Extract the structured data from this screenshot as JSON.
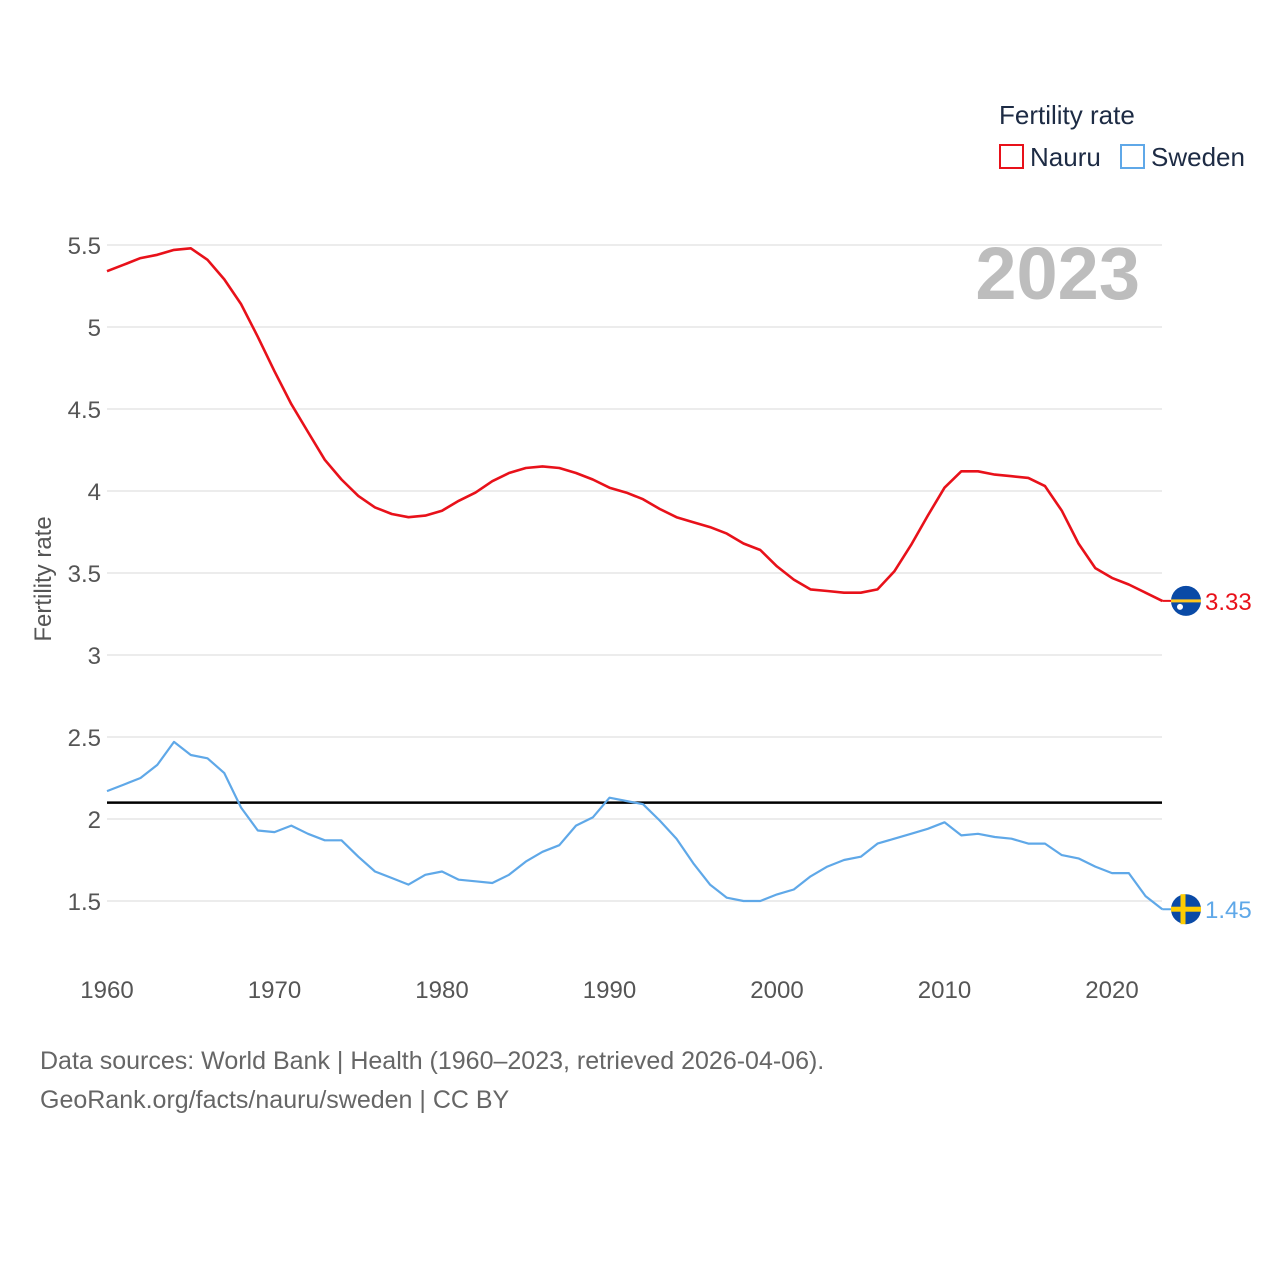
{
  "chart_data": {
    "type": "line",
    "title": "",
    "legend_title": "Fertility rate",
    "year_label": "2023",
    "ylabel": "Fertility rate",
    "xlabel": "",
    "xlim": [
      1960,
      2023
    ],
    "ylim": [
      1.25,
      5.6
    ],
    "x_ticks": [
      "1960",
      "1970",
      "1980",
      "1990",
      "2000",
      "2010",
      "2020"
    ],
    "y_ticks": [
      "1.5",
      "2",
      "2.5",
      "3",
      "3.5",
      "4",
      "4.5",
      "5",
      "5.5"
    ],
    "reference_line": 2.1,
    "years": [
      1960,
      1961,
      1962,
      1963,
      1964,
      1965,
      1966,
      1967,
      1968,
      1969,
      1970,
      1971,
      1972,
      1973,
      1974,
      1975,
      1976,
      1977,
      1978,
      1979,
      1980,
      1981,
      1982,
      1983,
      1984,
      1985,
      1986,
      1987,
      1988,
      1989,
      1990,
      1991,
      1992,
      1993,
      1994,
      1995,
      1996,
      1997,
      1998,
      1999,
      2000,
      2001,
      2002,
      2003,
      2004,
      2005,
      2006,
      2007,
      2008,
      2009,
      2010,
      2011,
      2012,
      2013,
      2014,
      2015,
      2016,
      2017,
      2018,
      2019,
      2020,
      2021,
      2022,
      2023
    ],
    "series": [
      {
        "name": "Nauru",
        "color": "#e8111a",
        "end_label": "3.33",
        "flag": "nauru",
        "values": [
          5.34,
          5.38,
          5.42,
          5.44,
          5.47,
          5.48,
          5.41,
          5.29,
          5.14,
          4.94,
          4.73,
          4.53,
          4.36,
          4.19,
          4.07,
          3.97,
          3.9,
          3.86,
          3.84,
          3.85,
          3.88,
          3.94,
          3.99,
          4.06,
          4.11,
          4.14,
          4.15,
          4.14,
          4.11,
          4.07,
          4.02,
          3.99,
          3.95,
          3.89,
          3.84,
          3.81,
          3.78,
          3.74,
          3.68,
          3.64,
          3.54,
          3.46,
          3.4,
          3.39,
          3.38,
          3.38,
          3.4,
          3.51,
          3.67,
          3.85,
          4.02,
          4.12,
          4.12,
          4.1,
          4.09,
          4.08,
          4.03,
          3.88,
          3.68,
          3.53,
          3.47,
          3.43,
          3.38,
          3.33
        ]
      },
      {
        "name": "Sweden",
        "color": "#5fa8e8",
        "end_label": "1.45",
        "flag": "sweden",
        "values": [
          2.17,
          2.21,
          2.25,
          2.33,
          2.47,
          2.39,
          2.37,
          2.28,
          2.07,
          1.93,
          1.92,
          1.96,
          1.91,
          1.87,
          1.87,
          1.77,
          1.68,
          1.64,
          1.6,
          1.66,
          1.68,
          1.63,
          1.62,
          1.61,
          1.66,
          1.74,
          1.8,
          1.84,
          1.96,
          2.01,
          2.13,
          2.11,
          2.09,
          1.99,
          1.88,
          1.73,
          1.6,
          1.52,
          1.5,
          1.5,
          1.54,
          1.57,
          1.65,
          1.71,
          1.75,
          1.77,
          1.85,
          1.88,
          1.91,
          1.94,
          1.98,
          1.9,
          1.91,
          1.89,
          1.88,
          1.85,
          1.85,
          1.78,
          1.76,
          1.71,
          1.67,
          1.67,
          1.53,
          1.45
        ]
      }
    ]
  },
  "footer": {
    "source_line": "Data sources: World Bank | Health (1960–2023, retrieved 2026-04-06).",
    "url_line": "GeoRank.org/facts/nauru/sweden | CC BY"
  }
}
